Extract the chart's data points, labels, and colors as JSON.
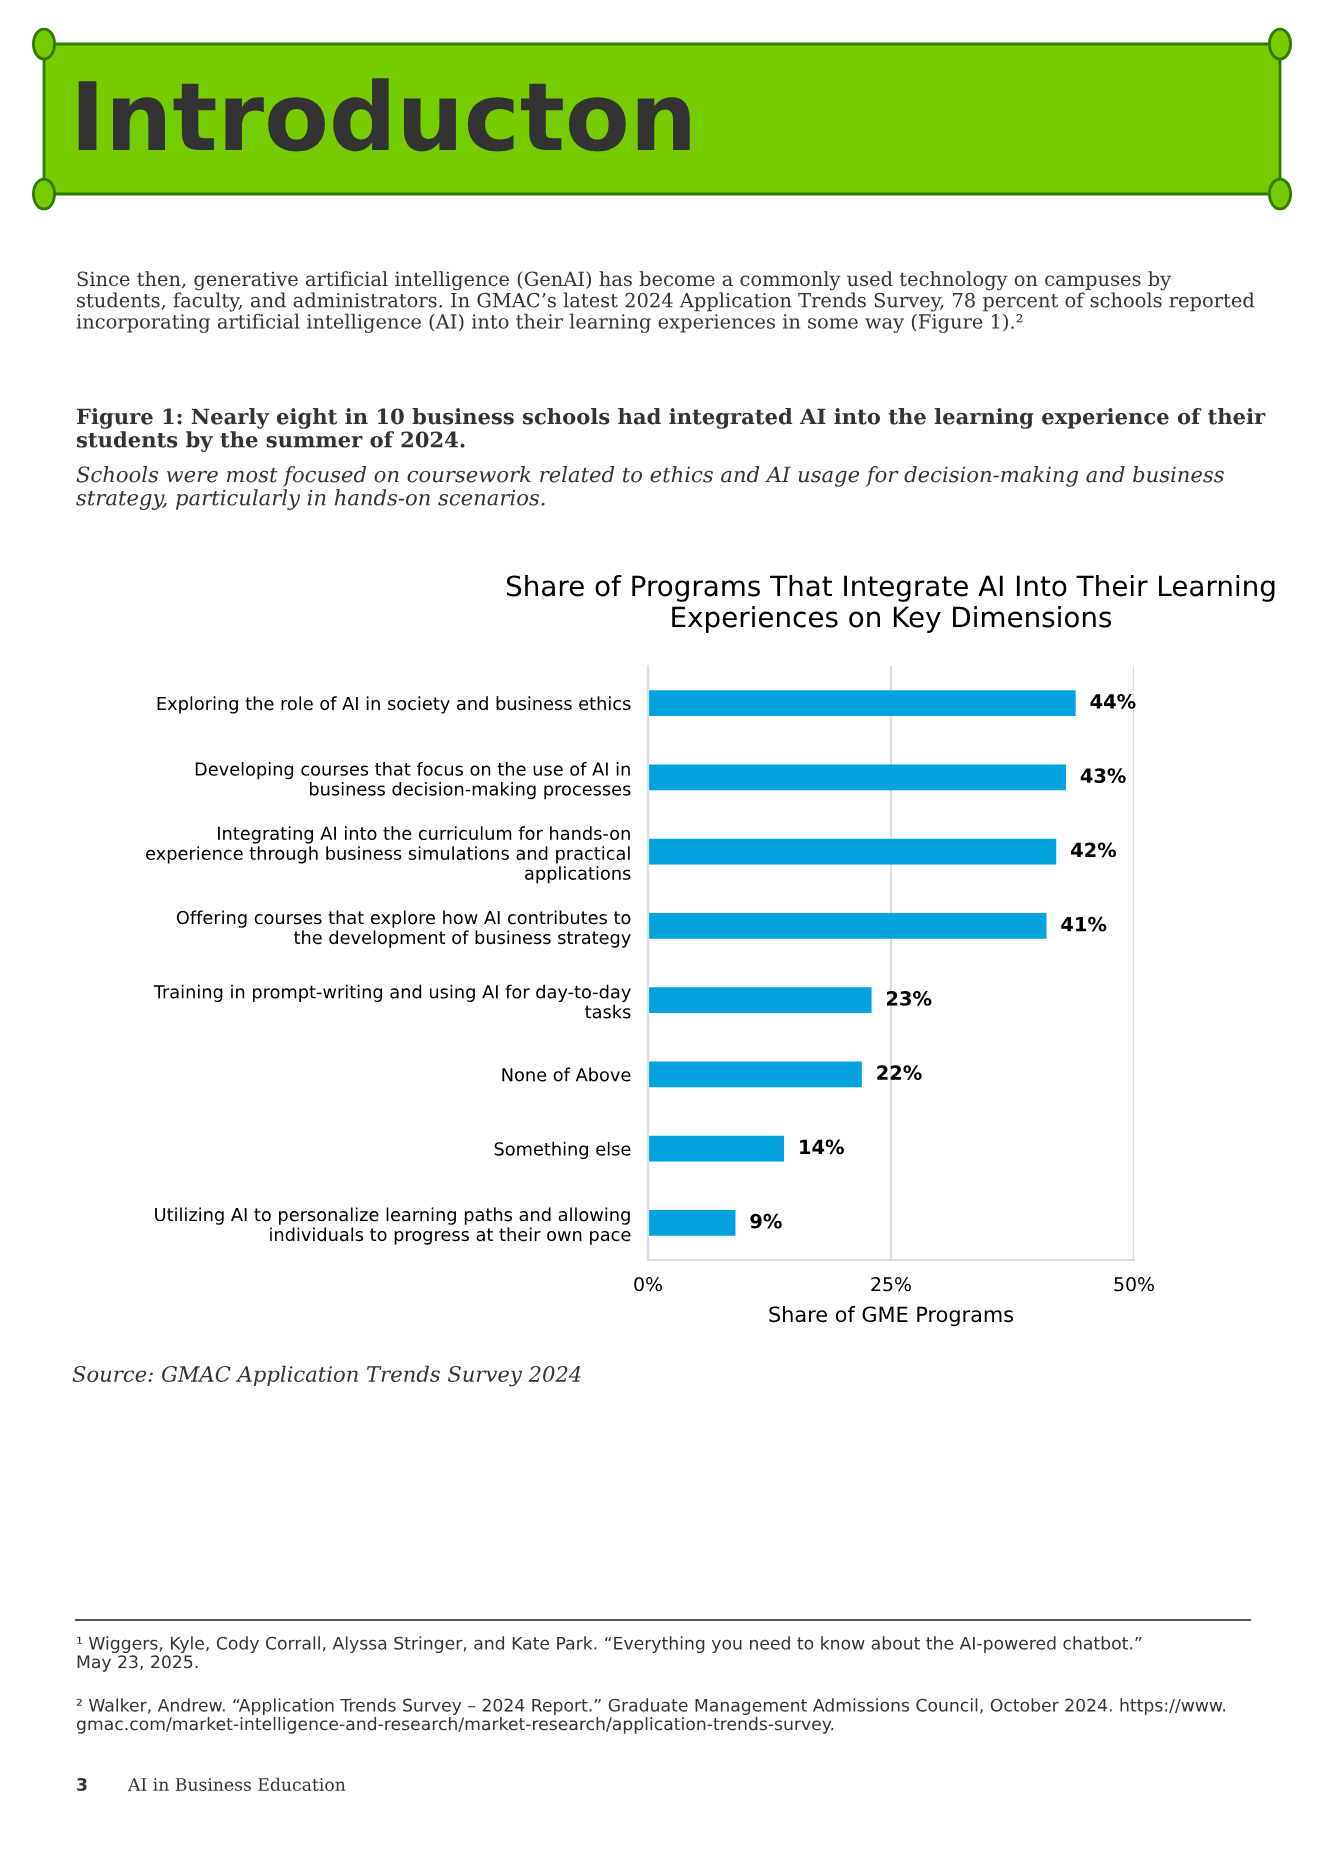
{
  "chart_data": {
    "type": "bar",
    "orientation": "horizontal",
    "title": "Share of Programs That Integrate AI Into Their Learning\nExperiences on Key Dimensions",
    "xlabel": "Share of GME Programs",
    "categories": [
      "Exploring the role of AI in society and business ethics",
      "Developing courses that focus on the use of AI in\nbusiness decision-making processes",
      "Integrating AI into the curriculum for hands-on\nexperience through business simulations and practical\napplications",
      "Offering courses that explore how AI contributes to\nthe development of business strategy",
      "Training in prompt-writing and using AI for day-to-day\ntasks",
      "None of Above",
      "Something else",
      "Utilizing AI to personalize learning paths and allowing\nindividuals to progress at their own pace"
    ],
    "values": [
      44,
      43,
      42,
      41,
      23,
      22,
      14,
      9
    ],
    "value_labels": [
      "44%",
      "43%",
      "42%",
      "41%",
      "23%",
      "22%",
      "14%",
      "9%"
    ],
    "color": "#00a3e0",
    "xlim": [
      0,
      50
    ],
    "xticks": [
      {
        "value": 0,
        "label": "0%"
      },
      {
        "value": 25,
        "label": "25%"
      },
      {
        "value": 50,
        "label": "50%"
      }
    ],
    "grid": "x",
    "annotations": [
      "Introducton",
      "Since then, generative artificial intelligence (GenAI) has become a commonly used technology on campuses by\nstudents, faculty, and administrators. In GMAC’s latest 2024 Application Trends Survey, 78 percent of schools reported\nincorporating artificial intelligence (AI) into their learning experiences in some way (Figure 1).²",
      "Figure 1: Nearly eight in 10 business schools had integrated AI into the learning experience of their\nstudents by the summer of 2024.",
      "Schools were most focused on coursework related to ethics and AI usage for decision-making and business\nstrategy, particularly in hands-on scenarios.",
      "Source: GMAC Application Trends Survey 2024",
      "¹ Wiggers, Kyle, Cody Corrall, Alyssa Stringer, and Kate Park. “Everything you need to know about the AI-powered chatbot.”\nMay 23, 2025.",
      "² Walker, Andrew. “Application Trends Survey – 2024 Report.” Graduate Management Admissions Council, October 2024. https://www.\ngmac.com/market-intelligence-and-research/market-research/application-trends-survey.",
      "3",
      "AI in Business Education"
    ]
  }
}
